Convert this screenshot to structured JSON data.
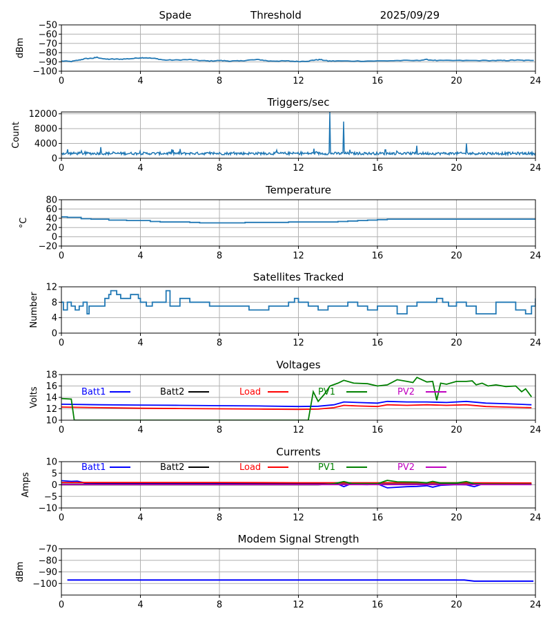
{
  "header": {
    "station": "Spade",
    "mode": "Threshold",
    "date": "2025/09/29"
  },
  "chart_data": [
    {
      "id": "signal",
      "type": "line",
      "title": "",
      "xlabel": "",
      "ylabel": "dBm",
      "xlim": [
        0,
        24
      ],
      "ylim": [
        -100,
        -50
      ],
      "xticks": [
        0,
        4,
        8,
        12,
        16,
        20,
        24
      ],
      "yticks": [
        -100,
        -90,
        -80,
        -70,
        -60,
        -50
      ],
      "ytick_labels": [
        "−100",
        "−90",
        "−80",
        "−70",
        "−60",
        "−50"
      ],
      "grid": true,
      "series": [
        {
          "name": "signal",
          "color": "#1f77b4",
          "x": [
            0,
            0.5,
            0.9,
            1.2,
            1.6,
            1.8,
            2.2,
            2.6,
            3.0,
            3.5,
            4.0,
            4.3,
            4.8,
            5.2,
            5.8,
            6.5,
            7.0,
            7.5,
            8.0,
            8.5,
            9.0,
            9.5,
            10.0,
            10.5,
            11.0,
            11.5,
            12.0,
            12.5,
            12.8,
            13.1,
            13.5,
            14.0,
            15.0,
            16.0,
            17.0,
            18.0,
            18.5,
            19.0,
            20.0,
            21.0,
            22.0,
            22.5,
            23.0,
            23.5,
            24.0
          ],
          "y": [
            -89,
            -89.5,
            -88,
            -86.5,
            -86,
            -85,
            -87,
            -87,
            -87,
            -86.5,
            -85.5,
            -85.5,
            -86.5,
            -88,
            -88,
            -87.5,
            -88.5,
            -89,
            -88.5,
            -89,
            -89,
            -88,
            -87.5,
            -89,
            -89,
            -89,
            -89.5,
            -89,
            -88,
            -87.5,
            -89,
            -89,
            -89,
            -89,
            -88.5,
            -88.5,
            -87.5,
            -88.5,
            -88.5,
            -88.5,
            -88.5,
            -88.5,
            -88,
            -88.5,
            -88
          ]
        }
      ]
    },
    {
      "id": "triggers",
      "type": "line",
      "title": "Triggers/sec",
      "xlabel": "",
      "ylabel": "Count",
      "xlim": [
        0,
        24
      ],
      "ylim": [
        0,
        12500
      ],
      "xticks": [
        0,
        4,
        8,
        12,
        16,
        20,
        24
      ],
      "yticks": [
        0,
        4000,
        8000,
        12000
      ],
      "ytick_labels": [
        "0",
        "4000",
        "8000",
        "12000"
      ],
      "grid": true,
      "baseline": 1300,
      "noise": 350,
      "spikes": [
        {
          "x": 0.3,
          "y": 2400
        },
        {
          "x": 1.0,
          "y": 2000
        },
        {
          "x": 2.0,
          "y": 3000
        },
        {
          "x": 5.6,
          "y": 2400
        },
        {
          "x": 6.0,
          "y": 2500
        },
        {
          "x": 10.9,
          "y": 2200
        },
        {
          "x": 12.8,
          "y": 2600
        },
        {
          "x": 13.6,
          "y": 12400
        },
        {
          "x": 14.3,
          "y": 9900
        },
        {
          "x": 14.6,
          "y": 2300
        },
        {
          "x": 16.4,
          "y": 2300
        },
        {
          "x": 18.0,
          "y": 3400
        },
        {
          "x": 20.5,
          "y": 4000
        }
      ],
      "series": [
        {
          "name": "triggers",
          "color": "#1f77b4"
        }
      ]
    },
    {
      "id": "temperature",
      "type": "line",
      "title": "Temperature",
      "xlabel": "",
      "ylabel": "°C",
      "xlim": [
        0,
        24
      ],
      "ylim": [
        -20,
        80
      ],
      "xticks": [
        0,
        4,
        8,
        12,
        16,
        20,
        24
      ],
      "yticks": [
        -20,
        0,
        20,
        40,
        60,
        80
      ],
      "ytick_labels": [
        "−20",
        "0",
        "20",
        "40",
        "60",
        "80"
      ],
      "grid": true,
      "series": [
        {
          "name": "temperature",
          "color": "#1f77b4",
          "x": [
            0,
            0.3,
            1.0,
            1.5,
            2.4,
            3.3,
            4.5,
            5.0,
            6.5,
            7.0,
            7.5,
            8.0,
            9.3,
            10.0,
            11.5,
            12.0,
            13.0,
            14.0,
            14.5,
            15.0,
            15.5,
            16.0,
            16.5,
            20.0,
            24.0
          ],
          "y": [
            43,
            42,
            39,
            38,
            36,
            35,
            33,
            32,
            31,
            30,
            30,
            30,
            31,
            31,
            32,
            32,
            32,
            33,
            34,
            35,
            36,
            37,
            38,
            38,
            38
          ]
        }
      ]
    },
    {
      "id": "satellites",
      "type": "line",
      "title": "Satellites Tracked",
      "xlabel": "",
      "ylabel": "Number",
      "xlim": [
        0,
        24
      ],
      "ylim": [
        0,
        12
      ],
      "xticks": [
        0,
        4,
        8,
        12,
        16,
        20,
        24
      ],
      "yticks": [
        0,
        4,
        8,
        12
      ],
      "ytick_labels": [
        "0",
        "4",
        "8",
        "12"
      ],
      "grid": true,
      "series": [
        {
          "name": "satellites",
          "color": "#1f77b4",
          "x": [
            0,
            0.1,
            0.3,
            0.5,
            0.7,
            0.9,
            1.1,
            1.3,
            1.4,
            2.0,
            2.2,
            2.4,
            2.5,
            2.8,
            3.0,
            3.5,
            3.9,
            4.0,
            4.3,
            4.6,
            5.0,
            5.3,
            5.5,
            5.7,
            6.0,
            6.5,
            7.0,
            7.5,
            8.0,
            8.5,
            9.0,
            9.5,
            10.0,
            10.5,
            11.0,
            11.5,
            11.8,
            12.0,
            12.5,
            13.0,
            13.5,
            14.0,
            14.5,
            15.0,
            15.5,
            16.0,
            16.5,
            17.0,
            17.5,
            18.0,
            18.5,
            19.0,
            19.3,
            19.6,
            20.0,
            20.5,
            21.0,
            21.5,
            22.0,
            22.5,
            23.0,
            23.5,
            23.8,
            24.0
          ],
          "y": [
            8,
            6,
            8,
            7,
            6,
            7,
            8,
            5,
            7,
            7,
            9,
            10,
            11,
            10,
            9,
            10,
            9,
            8,
            7,
            8,
            8,
            11,
            7,
            7,
            9,
            8,
            8,
            7,
            7,
            7,
            7,
            6,
            6,
            7,
            7,
            8,
            9,
            8,
            7,
            6,
            7,
            7,
            8,
            7,
            6,
            7,
            7,
            5,
            7,
            8,
            8,
            9,
            8,
            7,
            8,
            7,
            5,
            5,
            8,
            8,
            6,
            5,
            7,
            9
          ]
        }
      ]
    },
    {
      "id": "voltages",
      "type": "line",
      "title": "Voltages",
      "xlabel": "",
      "ylabel": "Volts",
      "xlim": [
        0,
        24
      ],
      "ylim": [
        10,
        18
      ],
      "xticks": [
        0,
        4,
        8,
        12,
        16,
        20,
        24
      ],
      "yticks": [
        10,
        12,
        14,
        16,
        18
      ],
      "ytick_labels": [
        "10",
        "12",
        "14",
        "16",
        "18"
      ],
      "grid": true,
      "legend": [
        "Batt1",
        "Batt2",
        "Load",
        "PV1",
        "PV2"
      ],
      "legend_placement": "top-inside-row",
      "series": [
        {
          "name": "Batt1",
          "color": "#0000ff",
          "x": [
            0,
            2,
            4,
            6,
            8,
            10,
            12,
            13,
            13.8,
            14.3,
            15,
            16,
            16.5,
            17.5,
            18.5,
            19.5,
            20.5,
            21.5,
            22.5,
            23.8
          ],
          "y": [
            12.8,
            12.7,
            12.65,
            12.6,
            12.55,
            12.5,
            12.4,
            12.45,
            12.7,
            13.2,
            13.1,
            13.0,
            13.3,
            13.2,
            13.2,
            13.1,
            13.3,
            13.0,
            12.9,
            12.7
          ]
        },
        {
          "name": "Batt2",
          "color": "#000000",
          "x": [],
          "y": []
        },
        {
          "name": "Load",
          "color": "#ff0000",
          "x": [
            0,
            2,
            4,
            6,
            8,
            10,
            12,
            13,
            13.8,
            14.3,
            15,
            16,
            16.5,
            17.5,
            18.5,
            19.5,
            20.5,
            21.5,
            22.5,
            23.8
          ],
          "y": [
            12.3,
            12.2,
            12.1,
            12.05,
            12.0,
            11.95,
            11.9,
            11.95,
            12.2,
            12.6,
            12.5,
            12.4,
            12.7,
            12.6,
            12.7,
            12.6,
            12.7,
            12.4,
            12.3,
            12.2
          ],
          "note": "line"
        },
        {
          "name": "PV1",
          "color": "#008000",
          "x": [
            0,
            0.5,
            0.65,
            12.5,
            12.75,
            13.0,
            13.3,
            13.6,
            14.0,
            14.3,
            14.8,
            15.5,
            16.0,
            16.5,
            17.0,
            17.5,
            17.8,
            18.0,
            18.5,
            18.8,
            19.0,
            19.2,
            19.5,
            20.0,
            20.5,
            20.8,
            21.0,
            21.3,
            21.6,
            22.0,
            22.5,
            23.0,
            23.3,
            23.5,
            23.8
          ],
          "y": [
            13.8,
            13.7,
            10.0,
            10.0,
            15.0,
            13.3,
            14.5,
            16.0,
            16.5,
            17.0,
            16.5,
            16.4,
            16.0,
            16.2,
            17.1,
            16.8,
            16.6,
            17.5,
            16.7,
            16.8,
            13.5,
            16.5,
            16.3,
            16.8,
            16.8,
            16.9,
            16.2,
            16.5,
            16.0,
            16.2,
            15.9,
            16.0,
            15.0,
            15.5,
            14.1
          ]
        },
        {
          "name": "PV2",
          "color": "#bf00bf",
          "x": [],
          "y": []
        }
      ]
    },
    {
      "id": "currents",
      "type": "line",
      "title": "Currents",
      "xlabel": "",
      "ylabel": "Amps",
      "xlim": [
        0,
        24
      ],
      "ylim": [
        -10,
        10
      ],
      "xticks": [
        0,
        4,
        8,
        12,
        16,
        20,
        24
      ],
      "yticks": [
        -10,
        -5,
        0,
        5,
        10
      ],
      "ytick_labels": [
        "−10",
        "−5",
        "0",
        "5",
        "10"
      ],
      "grid": true,
      "legend": [
        "Batt1",
        "Batt2",
        "Load",
        "PV1",
        "PV2"
      ],
      "legend_placement": "top-inside-row",
      "series": [
        {
          "name": "Batt1",
          "color": "#0000ff",
          "x": [
            0,
            0.5,
            0.8,
            1.2,
            4,
            8,
            12,
            13.5,
            14.0,
            14.3,
            14.6,
            15.5,
            16.0,
            16.5,
            17.5,
            18.0,
            18.5,
            18.8,
            19.2,
            20.0,
            20.5,
            20.9,
            21.3,
            22,
            23.8
          ],
          "y": [
            1.8,
            1.5,
            1.6,
            0.8,
            0.5,
            0.5,
            0.5,
            0.5,
            0.3,
            -0.8,
            0.2,
            0.1,
            0.4,
            -1.3,
            -0.8,
            -0.7,
            -0.4,
            -1.0,
            -0.2,
            0.1,
            0.0,
            -0.8,
            0.3,
            0.4,
            0.4
          ]
        },
        {
          "name": "Batt2",
          "color": "#000000",
          "x": [
            0,
            23.8
          ],
          "y": [
            0.3,
            0.3
          ]
        },
        {
          "name": "Load",
          "color": "#ff0000",
          "x": [
            0,
            4,
            8,
            12,
            16,
            20,
            23.8
          ],
          "y": [
            1.0,
            1.0,
            1.0,
            0.9,
            0.9,
            0.9,
            0.8
          ]
        },
        {
          "name": "PV1",
          "color": "#008000",
          "x": [
            0,
            13.0,
            13.8,
            14.3,
            14.7,
            16.0,
            16.5,
            17.0,
            18.0,
            18.5,
            18.8,
            19.2,
            20.0,
            20.5,
            20.9,
            21.3,
            23.8
          ],
          "y": [
            0,
            0,
            0.5,
            1.4,
            0.6,
            0.5,
            1.9,
            1.3,
            1.2,
            0.9,
            1.5,
            0.8,
            0.8,
            1.4,
            0.5,
            0.4,
            0.3
          ]
        },
        {
          "name": "PV2",
          "color": "#bf00bf",
          "x": [
            0,
            23.8
          ],
          "y": [
            0.1,
            0.1
          ]
        }
      ]
    },
    {
      "id": "modem",
      "type": "line",
      "title": "Modem Signal Strength",
      "xlabel": "",
      "ylabel": "dBm",
      "xlim": [
        0,
        24
      ],
      "ylim": [
        -110,
        -70
      ],
      "xticks": [
        0,
        4,
        8,
        12,
        16,
        20,
        24
      ],
      "yticks": [
        -100,
        -90,
        -80,
        -70
      ],
      "ytick_labels": [
        "−100",
        "−90",
        "−80",
        "−70"
      ],
      "grid": true,
      "series": [
        {
          "name": "modem",
          "color": "#0000ff",
          "x": [
            0.3,
            20.4,
            20.9,
            23.9
          ],
          "y": [
            -97,
            -97,
            -98,
            -98
          ]
        }
      ]
    }
  ]
}
